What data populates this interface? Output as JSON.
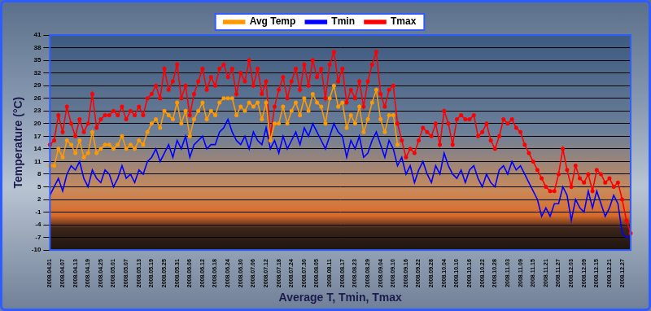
{
  "chart_data": {
    "type": "line",
    "x_label": "Average T, Tmin, Tmax",
    "y_label": "Temperature (°C)",
    "legend": "top",
    "grid": true,
    "ylim": [
      -10,
      41
    ],
    "yticks": [
      -10,
      -7,
      -4,
      -1,
      2,
      5,
      8,
      11,
      14,
      17,
      20,
      23,
      26,
      29,
      32,
      35,
      38,
      41
    ],
    "categories": [
      "2008.04.01",
      null,
      null,
      "2008.04.07",
      null,
      null,
      "2008.04.13",
      null,
      null,
      "2008.04.19",
      null,
      null,
      "2008.04.25",
      null,
      null,
      "2008.05.01",
      null,
      null,
      "2008.05.07",
      null,
      null,
      "2008.05.13",
      null,
      null,
      "2008.05.19",
      null,
      null,
      "2008.05.25",
      null,
      null,
      "2008.05.31",
      null,
      null,
      "2008.06.06",
      null,
      null,
      "2008.06.12",
      null,
      null,
      "2008.06.18",
      null,
      null,
      "2008.06.24",
      null,
      null,
      "2008.06.30",
      null,
      null,
      "2008.07.06",
      null,
      null,
      "2008.07.12",
      null,
      null,
      "2008.07.18",
      null,
      null,
      "2008.07.24",
      null,
      null,
      "2008.07.30",
      null,
      null,
      "2008.08.05",
      null,
      null,
      "2008.08.11",
      null,
      null,
      "2008.08.17",
      null,
      null,
      "2008.08.23",
      null,
      null,
      "2008.08.29",
      null,
      null,
      "2008.09.04",
      null,
      null,
      "2008.09.10",
      null,
      null,
      "2008.09.16",
      null,
      null,
      "2008.09.22",
      null,
      null,
      "2008.09.28",
      null,
      null,
      "2008.10.04",
      null,
      null,
      "2008.10.10",
      null,
      null,
      "2008.10.16",
      null,
      null,
      "2008.10.22",
      null,
      null,
      "2008.10.28",
      null,
      null,
      "2008.11.03",
      null,
      null,
      "2008.11.09",
      null,
      null,
      "2008.11.15",
      null,
      null,
      "2008.11.21",
      null,
      null,
      "2008.11.27",
      null,
      null,
      "2008.12.03",
      null,
      null,
      "2008.12.09",
      null,
      null,
      "2008.12.15",
      null,
      null,
      "2008.12.21",
      null,
      null,
      "2008.12.27",
      null,
      null
    ],
    "series": [
      {
        "name": "Avg Temp",
        "color": "#ff9900",
        "marker": "circle",
        "values": [
          10,
          10,
          14,
          12,
          16,
          15,
          13,
          16,
          12,
          13,
          18,
          13,
          14,
          15,
          15,
          14,
          15,
          17,
          14,
          15,
          14,
          16,
          15,
          18,
          20,
          21,
          19,
          23,
          22,
          21,
          25,
          20,
          23,
          17,
          21,
          23,
          25,
          21,
          23,
          22,
          25,
          26,
          26,
          26,
          22,
          24,
          23,
          25,
          24,
          25,
          21,
          25,
          16,
          20,
          20,
          24,
          20,
          23,
          25,
          22,
          26,
          23,
          27,
          25,
          24,
          20,
          26,
          29,
          24,
          25,
          19,
          22,
          20,
          24,
          18,
          21,
          25,
          28,
          21,
          18,
          22,
          22,
          15,
          null,
          null,
          null,
          null,
          null,
          null,
          null,
          null,
          null,
          null,
          null,
          null,
          null,
          null,
          null,
          null,
          null,
          null,
          null,
          null,
          null,
          null,
          null,
          null,
          null,
          null,
          null,
          null,
          null,
          null,
          null,
          null,
          null,
          null,
          null,
          null,
          null,
          null,
          null,
          null,
          null,
          null,
          null,
          null,
          null,
          null,
          null,
          null,
          null,
          null,
          null,
          null,
          null,
          null,
          null
        ]
      },
      {
        "name": "Tmin",
        "color": "#0000ff",
        "marker": "none",
        "values": [
          3,
          5,
          7,
          4,
          8,
          10,
          9,
          11,
          7,
          5,
          9,
          7,
          6,
          9,
          8,
          5,
          7,
          10,
          7,
          8,
          6,
          9,
          8,
          11,
          12,
          14,
          11,
          13,
          15,
          12,
          16,
          14,
          17,
          12,
          15,
          16,
          17,
          14,
          15,
          15,
          18,
          19,
          21,
          18,
          16,
          15,
          17,
          14,
          18,
          16,
          15,
          19,
          14,
          16,
          13,
          17,
          14,
          16,
          18,
          15,
          19,
          17,
          20,
          18,
          16,
          14,
          17,
          20,
          18,
          17,
          12,
          16,
          14,
          17,
          12,
          13,
          16,
          18,
          15,
          12,
          16,
          14,
          10,
          12,
          8,
          10,
          6,
          9,
          11,
          8,
          6,
          10,
          8,
          13,
          10,
          8,
          7,
          9,
          6,
          9,
          10,
          7,
          5,
          8,
          6,
          5,
          9,
          10,
          8,
          11,
          9,
          10,
          8,
          6,
          4,
          2,
          -2,
          0,
          -2,
          1,
          1,
          5,
          3,
          -3,
          2,
          0,
          -1,
          4,
          0,
          4,
          1,
          -2,
          0,
          3,
          1,
          -6,
          -7,
          -7
        ]
      },
      {
        "name": "Tmax",
        "color": "#ff0000",
        "marker": "circle",
        "values": [
          15,
          16,
          22,
          18,
          24,
          20,
          17,
          21,
          18,
          20,
          27,
          19,
          21,
          22,
          22,
          23,
          22,
          24,
          21,
          23,
          22,
          24,
          22,
          26,
          27,
          29,
          26,
          33,
          28,
          30,
          34,
          26,
          29,
          22,
          27,
          30,
          33,
          28,
          31,
          29,
          33,
          34,
          31,
          33,
          27,
          32,
          30,
          35,
          29,
          33,
          27,
          30,
          17,
          24,
          28,
          31,
          26,
          30,
          33,
          28,
          34,
          29,
          35,
          31,
          33,
          26,
          34,
          37,
          30,
          33,
          25,
          28,
          26,
          30,
          24,
          30,
          34,
          37,
          27,
          24,
          28,
          29,
          20,
          16,
          12,
          14,
          13,
          16,
          19,
          18,
          17,
          20,
          15,
          23,
          20,
          15,
          21,
          22,
          21,
          21,
          22,
          17,
          18,
          20,
          16,
          14,
          17,
          21,
          20,
          21,
          19,
          18,
          15,
          13,
          11,
          9,
          7,
          5,
          4,
          4,
          8,
          14,
          9,
          5,
          10,
          7,
          6,
          8,
          4,
          9,
          8,
          6,
          7,
          5,
          6,
          2,
          -3,
          -6
        ]
      }
    ]
  }
}
